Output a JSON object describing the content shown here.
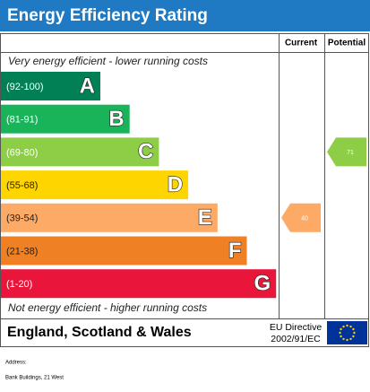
{
  "title": "Energy Efficiency Rating",
  "headers": [
    "Current",
    "Potential"
  ],
  "top_note": "Very energy efficient - lower running costs",
  "bands": [
    {
      "range": "(92-100)",
      "letter": "A",
      "color": "#008054"
    },
    {
      "range": "(81-91)",
      "letter": "B",
      "color": "#19b459"
    },
    {
      "range": "(69-80)",
      "letter": "C",
      "color": "#8dce46"
    },
    {
      "range": "(55-68)",
      "letter": "D",
      "color": "#ffd500"
    },
    {
      "range": "(39-54)",
      "letter": "E",
      "color": "#fcaa65"
    },
    {
      "range": "(21-38)",
      "letter": "F",
      "color": "#ef8023"
    },
    {
      "range": "(1-20)",
      "letter": "G",
      "color": "#e9153b"
    }
  ],
  "current": 40,
  "potential": 71,
  "bottom_note": "Not energy efficient - higher running costs",
  "footer": {
    "region": "England, Scotland & Wales",
    "directive": [
      "EU Directive",
      "2002/91/EC"
    ]
  },
  "address": {
    "label": "Address:",
    "text": "Bank Buildings, 21 West"
  }
}
